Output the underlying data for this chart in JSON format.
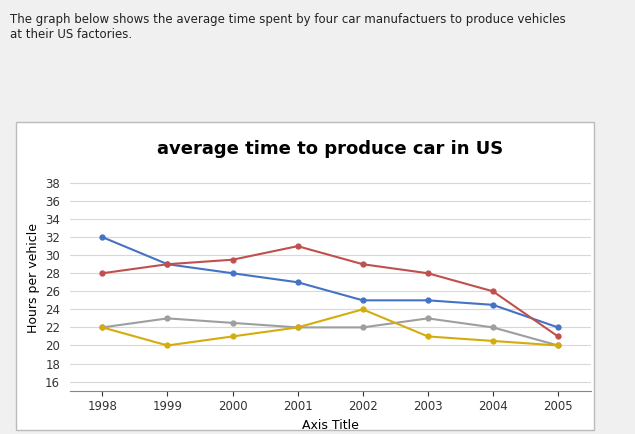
{
  "title": "average time to produce car in US",
  "xlabel": "Axis Title",
  "ylabel": "Hours per vehicle",
  "years": [
    1998,
    1999,
    2000,
    2001,
    2002,
    2003,
    2004,
    2005
  ],
  "series": {
    "General Motor": {
      "values": [
        32,
        29,
        28,
        27,
        25,
        25,
        24.5,
        22
      ],
      "color": "#4472C4",
      "marker": "o"
    },
    "Ford": {
      "values": [
        28,
        29,
        29.5,
        31,
        29,
        28,
        26,
        21
      ],
      "color": "#C0504D",
      "marker": "o"
    },
    "Toyota": {
      "values": [
        22,
        23,
        22.5,
        22,
        22,
        23,
        22,
        20
      ],
      "color": "#9E9E9E",
      "marker": "o"
    },
    "Honda": {
      "values": [
        22,
        20,
        21,
        22,
        24,
        21,
        20.5,
        20
      ],
      "color": "#D4AC0D",
      "marker": "o"
    }
  },
  "ylim": [
    15,
    40
  ],
  "yticks": [
    16,
    18,
    20,
    22,
    24,
    26,
    28,
    30,
    32,
    34,
    36,
    38
  ],
  "background_color": "#ffffff",
  "panel_color": "#ffffff",
  "border_color": "#c0c0c0",
  "grid_color": "#d8d8d8",
  "title_fontsize": 13,
  "axis_label_fontsize": 9,
  "tick_fontsize": 8.5,
  "legend_fontsize": 8.5,
  "header_text": "The graph below shows the average time spent by four car manufactuers to produce vehicles\nat their US factories."
}
